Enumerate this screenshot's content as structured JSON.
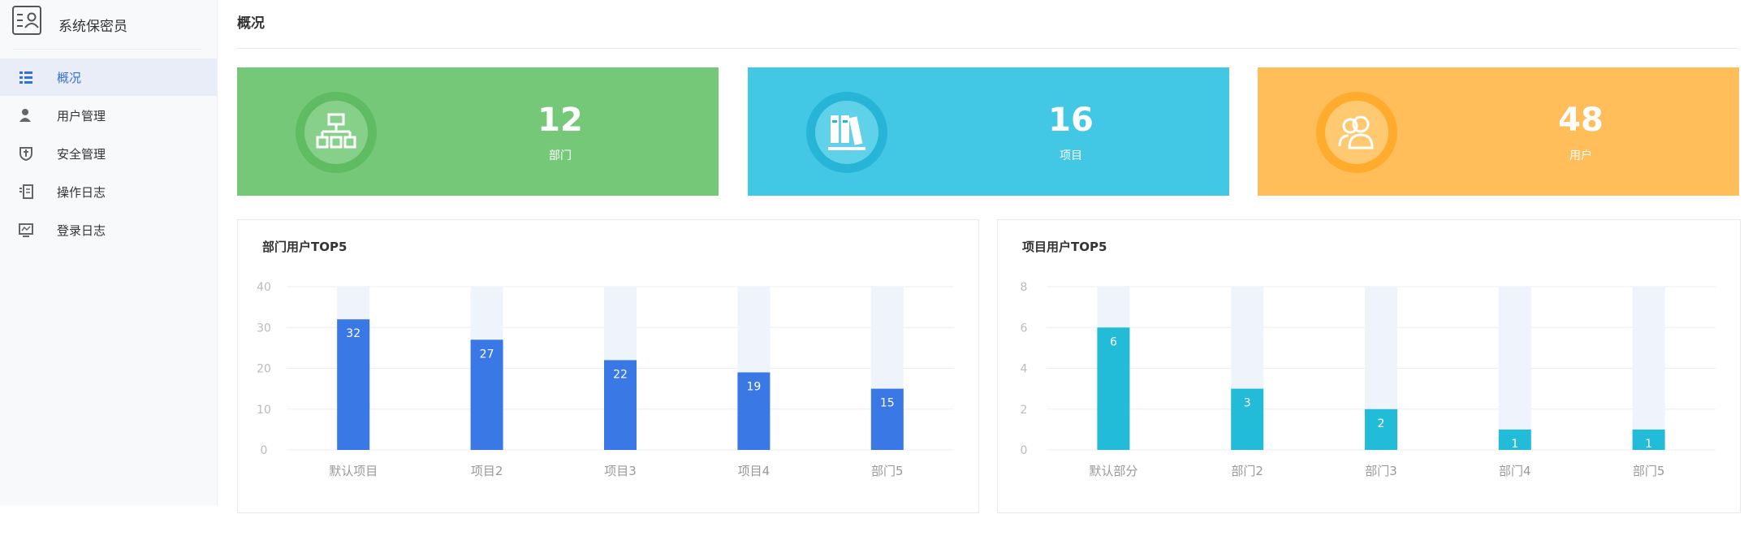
{
  "app": {
    "title": "系统保密员"
  },
  "sidebar": {
    "items": [
      {
        "label": "概况",
        "icon": "list-icon",
        "active": true
      },
      {
        "label": "用户管理",
        "icon": "user-icon",
        "active": false
      },
      {
        "label": "安全管理",
        "icon": "shield-icon",
        "active": false
      },
      {
        "label": "操作日志",
        "icon": "log-icon",
        "active": false
      },
      {
        "label": "登录日志",
        "icon": "monitor-icon",
        "active": false
      }
    ]
  },
  "main": {
    "page_title": "概况"
  },
  "stats": [
    {
      "value": "12",
      "label": "部门",
      "color": "#76c879",
      "ring": "#5fbc63",
      "inner": "#86d08a",
      "icon": "org-chart-icon"
    },
    {
      "value": "16",
      "label": "项目",
      "color": "#42c8e5",
      "ring": "#26b5d6",
      "inner": "#5fd2ea",
      "icon": "binders-icon"
    },
    {
      "value": "48",
      "label": "用户",
      "color": "#ffbe5a",
      "ring": "#ffab2e",
      "inner": "#ffc971",
      "icon": "users-icon"
    }
  ],
  "panels": [
    {
      "title": "部门用户TOP5"
    },
    {
      "title": "项目用户TOP5"
    }
  ],
  "chart_data": [
    {
      "type": "bar",
      "title": "部门用户TOP5",
      "categories": [
        "默认项目",
        "项目2",
        "项目3",
        "项目4",
        "部门5"
      ],
      "values": [
        32,
        27,
        22,
        19,
        15
      ],
      "ylim": [
        0,
        40
      ],
      "yticks": [
        0,
        10,
        20,
        30,
        40
      ],
      "bar_color": "#3a78e6",
      "background_bar_color": "#eef3fc",
      "grid": true
    },
    {
      "type": "bar",
      "title": "项目用户TOP5",
      "categories": [
        "默认部分",
        "部门2",
        "部门3",
        "部门4",
        "部门5"
      ],
      "values": [
        6,
        3,
        2,
        1,
        1
      ],
      "ylim": [
        0,
        8
      ],
      "yticks": [
        0,
        2,
        4,
        6,
        8
      ],
      "bar_color": "#22bcd8",
      "background_bar_color": "#eef3fc",
      "grid": true
    }
  ]
}
